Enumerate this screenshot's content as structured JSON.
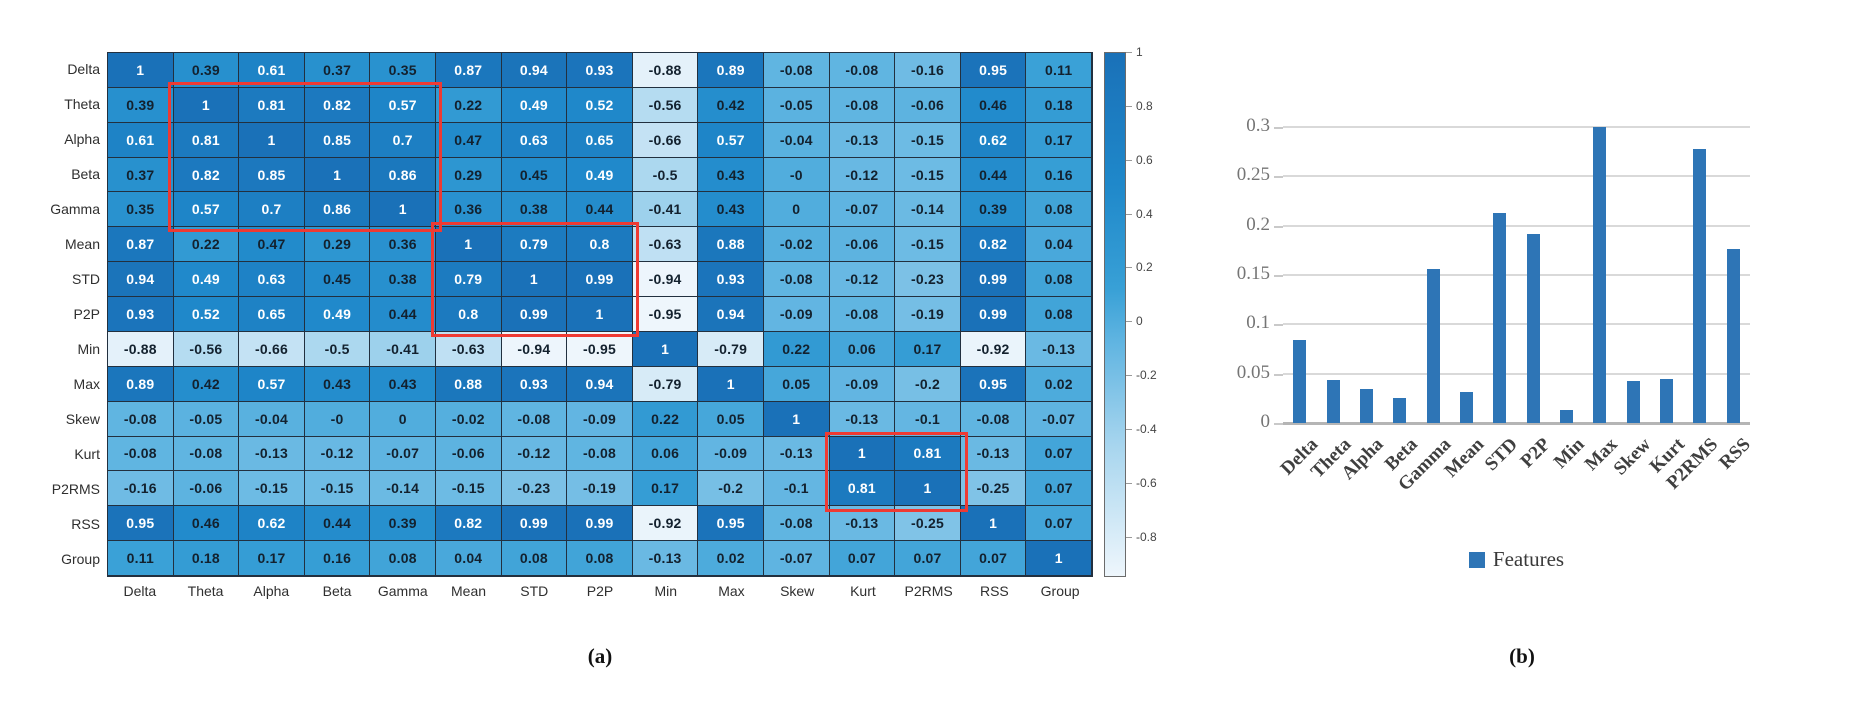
{
  "captions": {
    "a": "(a)",
    "b": "(b)"
  },
  "colors": {
    "bar": "#2e75b6",
    "highlight": "#ee3a33",
    "heatmap_grid_line": "#22303f",
    "chart_gridline": "#d9d9d9",
    "chart_baseline": "#b5b5b5",
    "colormap": [
      [
        0,
        "#eef6fc"
      ],
      [
        0.25,
        "#a7d5ee"
      ],
      [
        0.45,
        "#5fb4e1"
      ],
      [
        0.55,
        "#38a0d6"
      ],
      [
        0.75,
        "#1f88ca"
      ],
      [
        1,
        "#1a71b8"
      ]
    ]
  },
  "chart_data": [
    {
      "type": "heatmap",
      "row_labels": [
        "Delta",
        "Theta",
        "Alpha",
        "Beta",
        "Gamma",
        "Mean",
        "STD",
        "P2P",
        "Min",
        "Max",
        "Skew",
        "Kurt",
        "P2RMS",
        "RSS",
        "Group"
      ],
      "col_labels": [
        "Delta",
        "Theta",
        "Alpha",
        "Beta",
        "Gamma",
        "Mean",
        "STD",
        "P2P",
        "Min",
        "Max",
        "Skew",
        "Kurt",
        "P2RMS",
        "RSS",
        "Group"
      ],
      "vmin": -0.95,
      "vmax": 1,
      "matrix": [
        [
          "1",
          "0.39",
          "0.61",
          "0.37",
          "0.35",
          "0.87",
          "0.94",
          "0.93",
          "-0.88",
          "0.89",
          "-0.08",
          "-0.08",
          "-0.16",
          "0.95",
          "0.11"
        ],
        [
          "0.39",
          "1",
          "0.81",
          "0.82",
          "0.57",
          "0.22",
          "0.49",
          "0.52",
          "-0.56",
          "0.42",
          "-0.05",
          "-0.08",
          "-0.06",
          "0.46",
          "0.18"
        ],
        [
          "0.61",
          "0.81",
          "1",
          "0.85",
          "0.7",
          "0.47",
          "0.63",
          "0.65",
          "-0.66",
          "0.57",
          "-0.04",
          "-0.13",
          "-0.15",
          "0.62",
          "0.17"
        ],
        [
          "0.37",
          "0.82",
          "0.85",
          "1",
          "0.86",
          "0.29",
          "0.45",
          "0.49",
          "-0.5",
          "0.43",
          "-0",
          "-0.12",
          "-0.15",
          "0.44",
          "0.16"
        ],
        [
          "0.35",
          "0.57",
          "0.7",
          "0.86",
          "1",
          "0.36",
          "0.38",
          "0.44",
          "-0.41",
          "0.43",
          "0",
          "-0.07",
          "-0.14",
          "0.39",
          "0.08"
        ],
        [
          "0.87",
          "0.22",
          "0.47",
          "0.29",
          "0.36",
          "1",
          "0.79",
          "0.8",
          "-0.63",
          "0.88",
          "-0.02",
          "-0.06",
          "-0.15",
          "0.82",
          "0.04"
        ],
        [
          "0.94",
          "0.49",
          "0.63",
          "0.45",
          "0.38",
          "0.79",
          "1",
          "0.99",
          "-0.94",
          "0.93",
          "-0.08",
          "-0.12",
          "-0.23",
          "0.99",
          "0.08"
        ],
        [
          "0.93",
          "0.52",
          "0.65",
          "0.49",
          "0.44",
          "0.8",
          "0.99",
          "1",
          "-0.95",
          "0.94",
          "-0.09",
          "-0.08",
          "-0.19",
          "0.99",
          "0.08"
        ],
        [
          "-0.88",
          "-0.56",
          "-0.66",
          "-0.5",
          "-0.41",
          "-0.63",
          "-0.94",
          "-0.95",
          "1",
          "-0.79",
          "0.22",
          "0.06",
          "0.17",
          "-0.92",
          "-0.13"
        ],
        [
          "0.89",
          "0.42",
          "0.57",
          "0.43",
          "0.43",
          "0.88",
          "0.93",
          "0.94",
          "-0.79",
          "1",
          "0.05",
          "-0.09",
          "-0.2",
          "0.95",
          "0.02"
        ],
        [
          "-0.08",
          "-0.05",
          "-0.04",
          "-0",
          "0",
          "-0.02",
          "-0.08",
          "-0.09",
          "0.22",
          "0.05",
          "1",
          "-0.13",
          "-0.1",
          "-0.08",
          "-0.07"
        ],
        [
          "-0.08",
          "-0.08",
          "-0.13",
          "-0.12",
          "-0.07",
          "-0.06",
          "-0.12",
          "-0.08",
          "0.06",
          "-0.09",
          "-0.13",
          "1",
          "0.81",
          "-0.13",
          "0.07"
        ],
        [
          "-0.16",
          "-0.06",
          "-0.15",
          "-0.15",
          "-0.14",
          "-0.15",
          "-0.23",
          "-0.19",
          "0.17",
          "-0.2",
          "-0.1",
          "0.81",
          "1",
          "-0.25",
          "0.07"
        ],
        [
          "0.95",
          "0.46",
          "0.62",
          "0.44",
          "0.39",
          "0.82",
          "0.99",
          "0.99",
          "-0.92",
          "0.95",
          "-0.08",
          "-0.13",
          "-0.25",
          "1",
          "0.07"
        ],
        [
          "0.11",
          "0.18",
          "0.17",
          "0.16",
          "0.08",
          "0.04",
          "0.08",
          "0.08",
          "-0.13",
          "0.02",
          "-0.07",
          "0.07",
          "0.07",
          "0.07",
          "1"
        ]
      ],
      "colorbar_ticks": [
        "1",
        "0.8",
        "0.6",
        "0.4",
        "0.2",
        "0",
        "-0.2",
        "-0.4",
        "-0.6",
        "-0.8"
      ],
      "highlight_blocks": [
        {
          "r0": 1,
          "r1": 5,
          "c0": 1,
          "c1": 5
        },
        {
          "r0": 5,
          "r1": 8,
          "c0": 5,
          "c1": 8
        },
        {
          "r0": 11,
          "r1": 13,
          "c0": 11,
          "c1": 13
        }
      ]
    },
    {
      "type": "bar",
      "categories": [
        "Delta",
        "Theta",
        "Alpha",
        "Beta",
        "Gamma",
        "Mean",
        "STD",
        "P2P",
        "Min",
        "Max",
        "Skew",
        "Kurt",
        "P2RMS",
        "RSS"
      ],
      "values": [
        0.084,
        0.044,
        0.034,
        0.025,
        0.156,
        0.031,
        0.213,
        0.192,
        0.013,
        0.3,
        0.043,
        0.045,
        0.278,
        0.176
      ],
      "legend": "Features",
      "ytick_labels": [
        "0",
        "0.05",
        "0.1",
        "0.15",
        "0.2",
        "0.25",
        "0.3"
      ],
      "ylim": [
        0,
        0.3
      ],
      "grid": true,
      "legend_position": "bottom"
    }
  ]
}
